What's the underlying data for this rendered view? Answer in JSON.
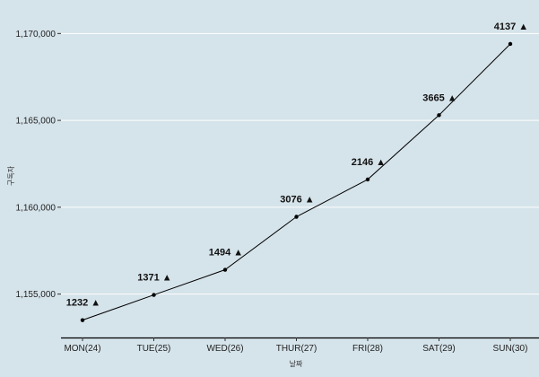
{
  "chart_data": {
    "type": "line",
    "title": "",
    "xlabel": "날짜",
    "ylabel": "구독자",
    "categories": [
      "MON(24)",
      "TUE(25)",
      "WED(26)",
      "THUR(27)",
      "FRI(28)",
      "SAT(29)",
      "SUN(30)"
    ],
    "series": [
      {
        "values": [
          1153500,
          1154950,
          1156400,
          1159450,
          1161600,
          1165300,
          1169400
        ]
      }
    ],
    "data_labels": [
      "1232 ▲",
      "1371 ▲",
      "1494 ▲",
      "3076 ▲",
      "2146 ▲",
      "3665 ▲",
      "4137 ▲"
    ],
    "ylim": [
      1152500,
      1171000
    ],
    "yticks": [
      1155000,
      1160000,
      1165000,
      1170000
    ],
    "ytick_labels": [
      "1,155,000",
      "1,160,000",
      "1,165,000",
      "1,170,000"
    ],
    "grid": "horizontal",
    "colors": {
      "background": "#d5e3ea",
      "grid": "#ffffff",
      "line": "#000000"
    }
  }
}
